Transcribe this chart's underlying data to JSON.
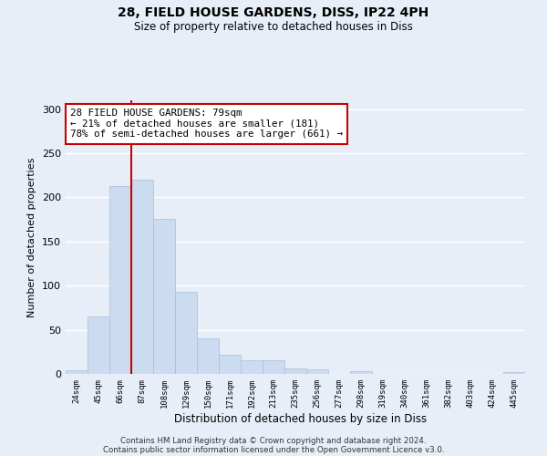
{
  "title1": "28, FIELD HOUSE GARDENS, DISS, IP22 4PH",
  "title2": "Size of property relative to detached houses in Diss",
  "xlabel": "Distribution of detached houses by size in Diss",
  "ylabel": "Number of detached properties",
  "categories": [
    "24sqm",
    "45sqm",
    "66sqm",
    "87sqm",
    "108sqm",
    "129sqm",
    "150sqm",
    "171sqm",
    "192sqm",
    "213sqm",
    "235sqm",
    "256sqm",
    "277sqm",
    "298sqm",
    "319sqm",
    "340sqm",
    "361sqm",
    "382sqm",
    "403sqm",
    "424sqm",
    "445sqm"
  ],
  "values": [
    4,
    65,
    213,
    220,
    176,
    93,
    40,
    22,
    16,
    15,
    6,
    5,
    0,
    3,
    0,
    0,
    0,
    0,
    0,
    0,
    2
  ],
  "bar_color": "#ccdcf0",
  "bar_edge_color": "#aabbd8",
  "vline_x_index": 2.5,
  "annotation_text": "28 FIELD HOUSE GARDENS: 79sqm\n← 21% of detached houses are smaller (181)\n78% of semi-detached houses are larger (661) →",
  "annotation_box_color": "white",
  "annotation_box_edge_color": "#cc0000",
  "vline_color": "#cc0000",
  "ylim": [
    0,
    310
  ],
  "yticks": [
    0,
    50,
    100,
    150,
    200,
    250,
    300
  ],
  "background_color": "#e8eef8",
  "grid_color": "white",
  "footer1": "Contains HM Land Registry data © Crown copyright and database right 2024.",
  "footer2": "Contains public sector information licensed under the Open Government Licence v3.0."
}
